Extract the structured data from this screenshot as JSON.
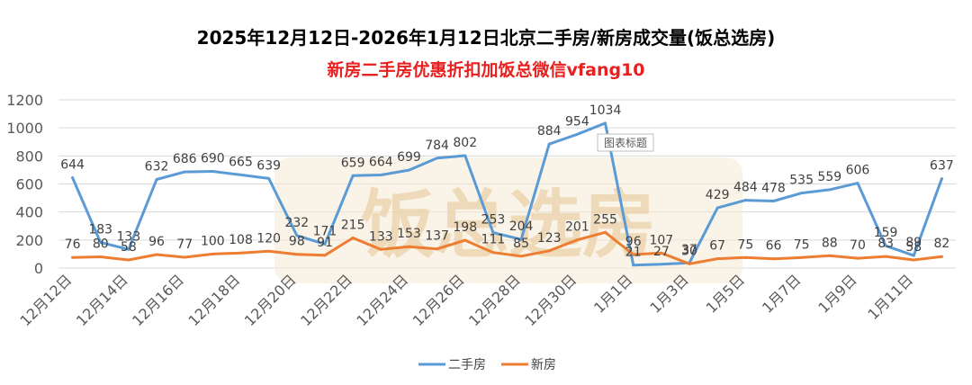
{
  "chart_data": {
    "type": "line",
    "title": "2025年12月12日-2026年1月12日北京二手房/新房成交量(饭总选房)",
    "subtitle": "新房二手房优惠折扣加饭总微信vfang10",
    "watermark": "饭总选房",
    "tooltip_text": "图表标题",
    "ylim": [
      0,
      1200
    ],
    "yticks": [
      0,
      200,
      400,
      600,
      800,
      1000,
      1200
    ],
    "x_tick_labels": [
      "12月12日",
      "12月14日",
      "12月16日",
      "12月18日",
      "12月20日",
      "12月22日",
      "12月24日",
      "12月26日",
      "12月28日",
      "12月30日",
      "1月1日",
      "1月3日",
      "1月5日",
      "1月7日",
      "1月9日",
      "1月11日"
    ],
    "x": [
      "12月12日",
      "12月13日",
      "12月14日",
      "12月15日",
      "12月16日",
      "12月17日",
      "12月18日",
      "12月19日",
      "12月20日",
      "12月21日",
      "12月22日",
      "12月23日",
      "12月24日",
      "12月25日",
      "12月26日",
      "12月27日",
      "12月28日",
      "12月29日",
      "12月30日",
      "12月31日",
      "1月1日",
      "1月2日",
      "1月3日",
      "1月4日",
      "1月5日",
      "1月6日",
      "1月7日",
      "1月8日",
      "1月9日",
      "1月10日",
      "1月11日",
      "1月12日"
    ],
    "series": [
      {
        "name": "二手房",
        "color": "#5b9bd5",
        "values": [
          644,
          183,
          133,
          632,
          686,
          690,
          665,
          639,
          232,
          171,
          659,
          664,
          699,
          784,
          802,
          253,
          204,
          884,
          954,
          1034,
          21,
          27,
          37,
          429,
          484,
          478,
          535,
          559,
          606,
          159,
          89,
          637
        ],
        "labels": [
          "644",
          "183",
          "133",
          "632",
          "686",
          "690",
          "665",
          "639",
          "232",
          "171",
          "659",
          "664",
          "699",
          "784",
          "802",
          "253",
          "204",
          "884",
          "954",
          "1034",
          "21",
          "27",
          "37",
          "429",
          "484",
          "478",
          "535",
          "559",
          "606",
          "159",
          "89",
          "637"
        ]
      },
      {
        "name": "新房",
        "color": "#ed7d31",
        "values": [
          76,
          80,
          58,
          96,
          77,
          100,
          108,
          120,
          98,
          91,
          215,
          133,
          153,
          137,
          198,
          111,
          85,
          123,
          201,
          255,
          96,
          107,
          30,
          67,
          75,
          66,
          75,
          88,
          70,
          83,
          58,
          82
        ],
        "labels": [
          "76",
          "80",
          "58",
          "96",
          "77",
          "100",
          "108",
          "120",
          "98",
          "91",
          "215",
          "133",
          "153",
          "137",
          "198",
          "111",
          "85",
          "123",
          "201",
          "255",
          "96",
          "107",
          "30",
          "67",
          "75",
          "66",
          "75",
          "88",
          "70",
          "83",
          "58",
          "82"
        ]
      }
    ],
    "grid": true,
    "legend": "bottom"
  }
}
